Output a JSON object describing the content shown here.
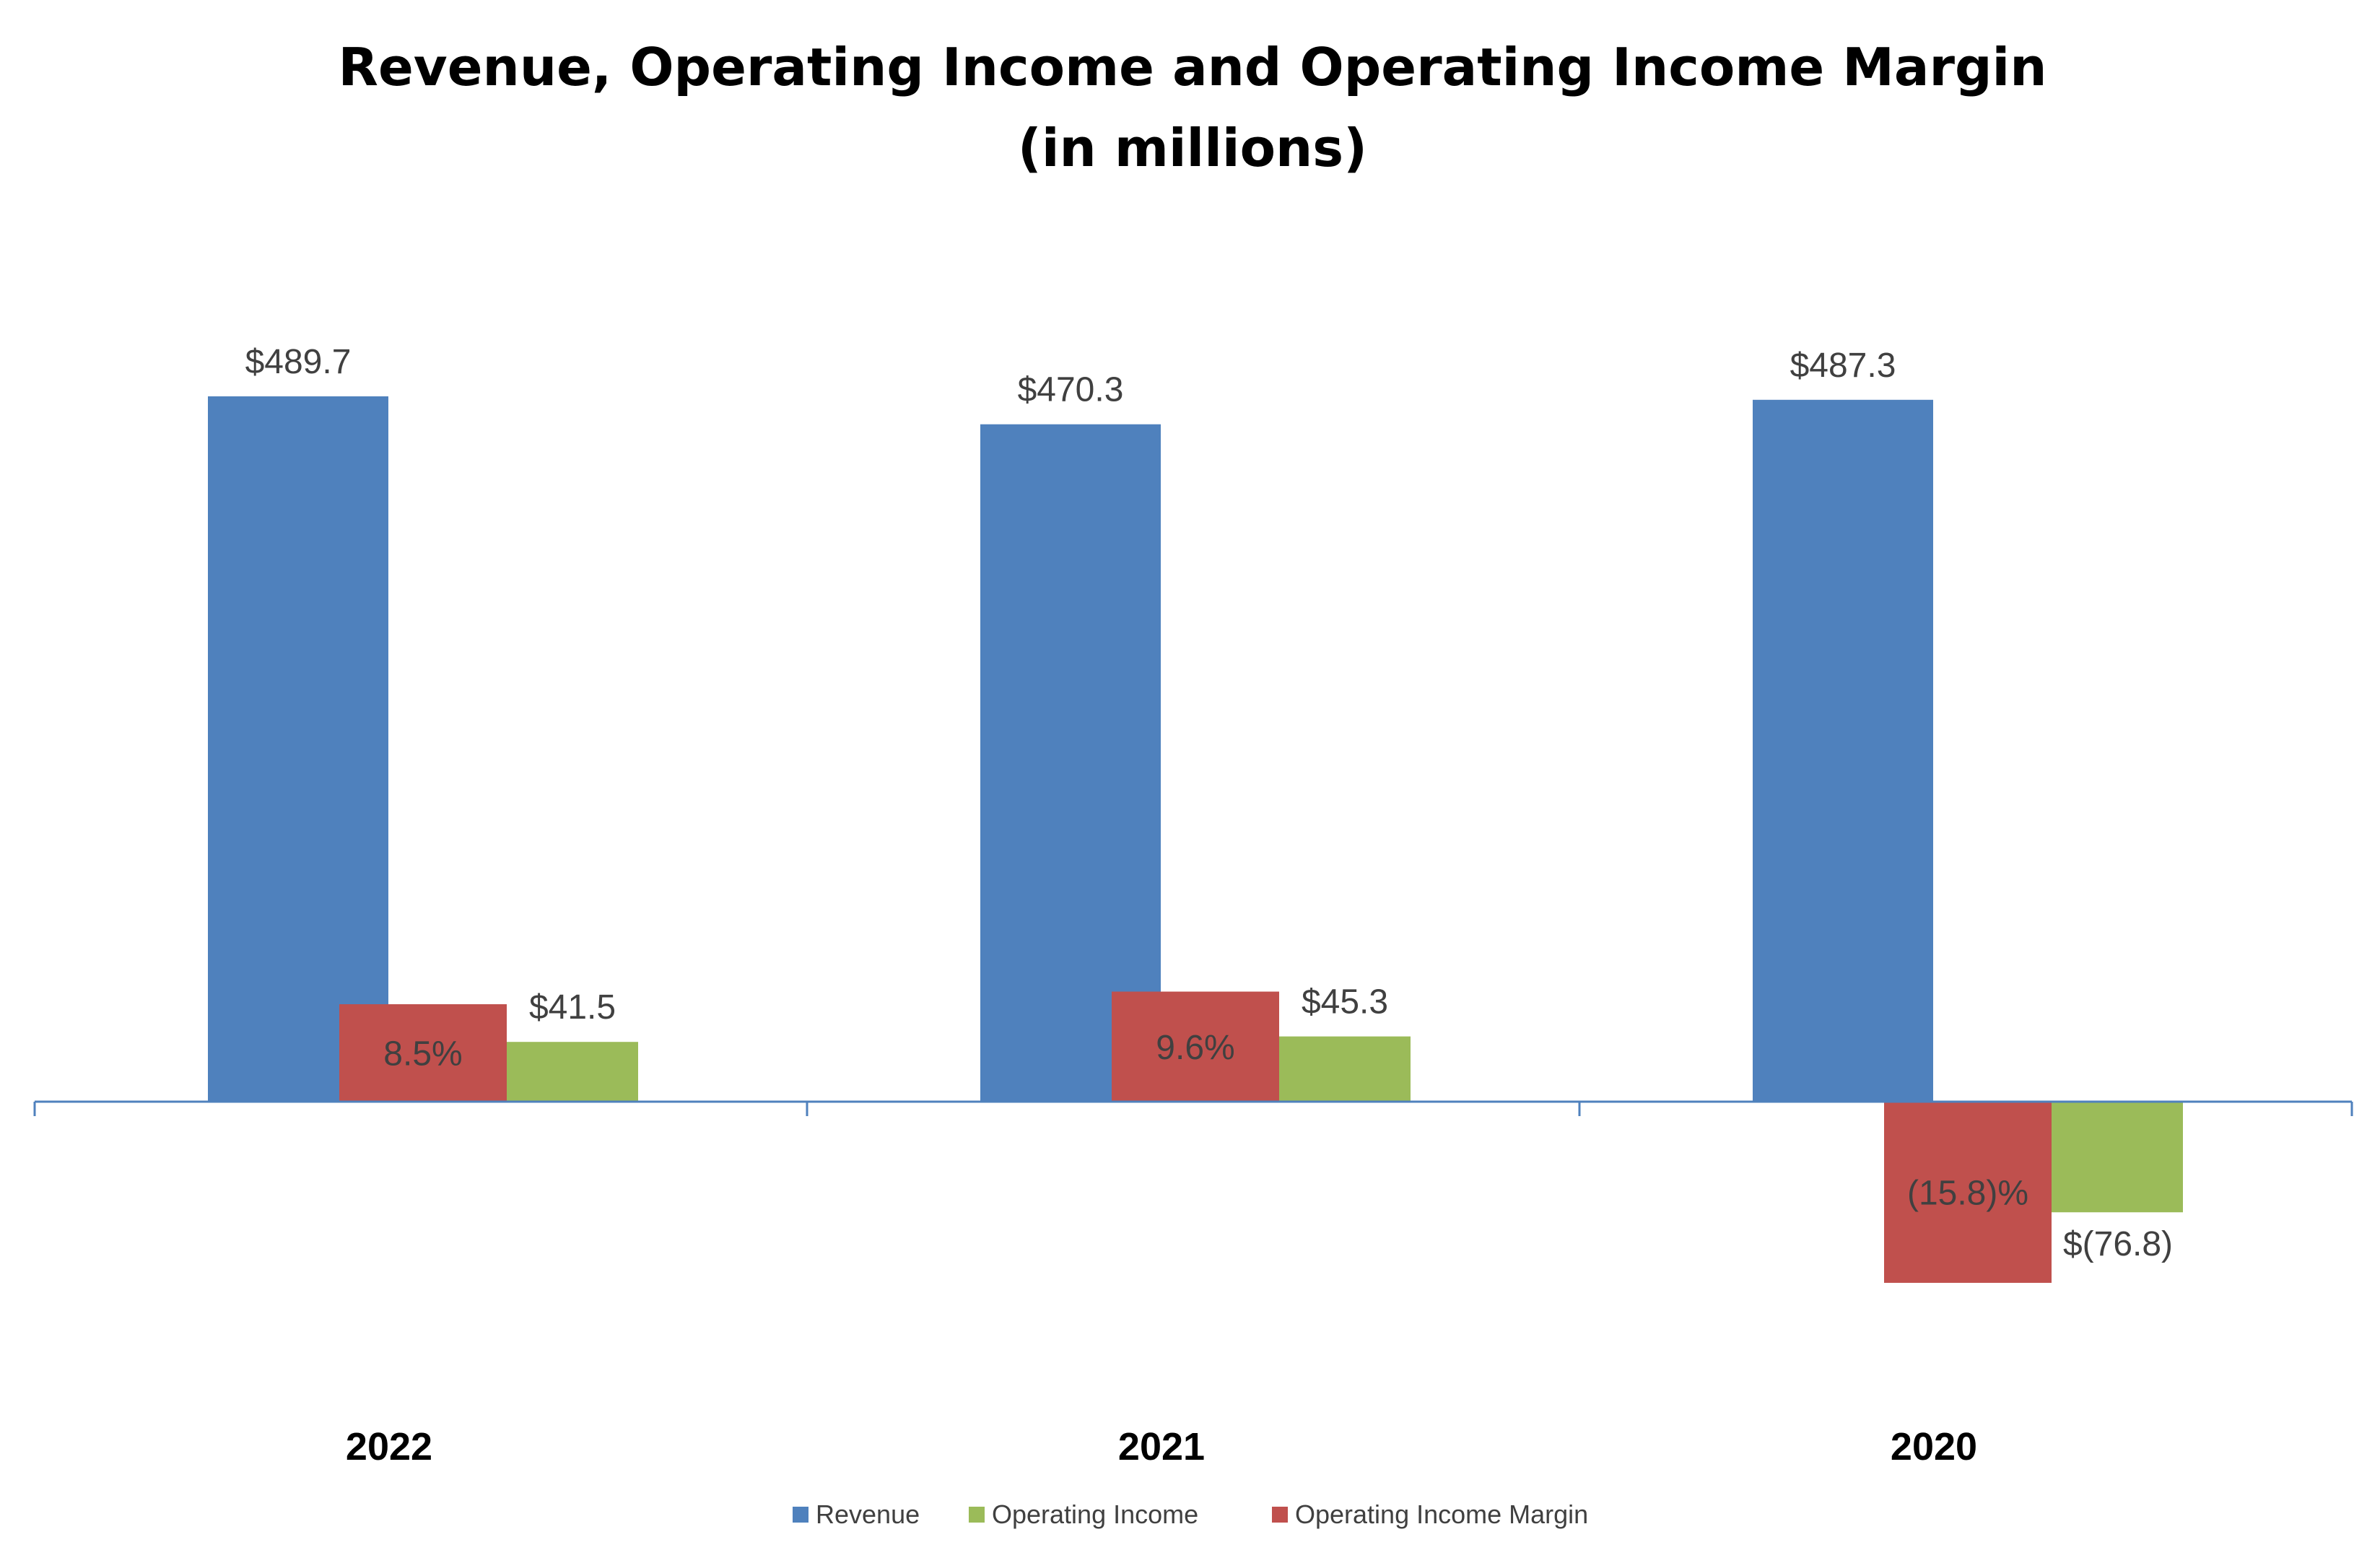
{
  "chart_data": {
    "type": "bar",
    "title": "Revenue, Operating Income and Operating Income Margin",
    "subtitle": "(in millions)",
    "categories": [
      "2022",
      "2021",
      "2020"
    ],
    "series": [
      {
        "name": "Revenue",
        "color": "#4F81BD",
        "values": [
          489.7,
          470.3,
          487.3
        ],
        "labels": [
          "$489.7",
          "$470.3",
          "$487.3"
        ]
      },
      {
        "name": "Operating Income Margin",
        "color": "#C0504D",
        "values": [
          8.5,
          9.6,
          -15.8
        ],
        "labels": [
          "8.5%",
          "9.6%",
          "(15.8)%"
        ]
      },
      {
        "name": "Operating Income",
        "color": "#9BBB59",
        "values": [
          41.5,
          45.3,
          -76.8
        ],
        "labels": [
          "$41.5",
          "$45.3",
          "$(76.8)"
        ]
      }
    ],
    "legend": {
      "placement": "bottom",
      "order": [
        "Revenue",
        "Operating Income",
        "Operating Income Margin"
      ]
    },
    "grid": false,
    "axis_color": "#4F81BD"
  }
}
